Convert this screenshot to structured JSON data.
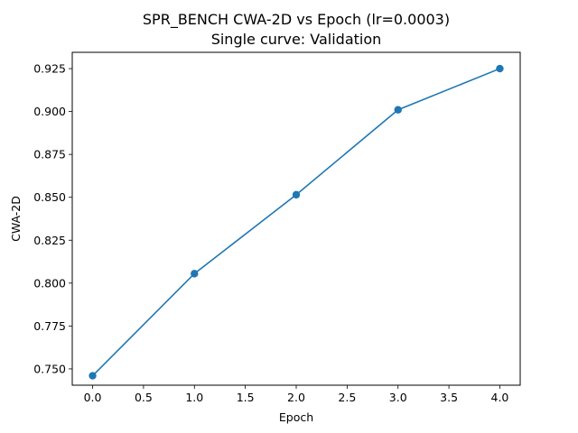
{
  "chart_data": {
    "type": "line",
    "title_line1": "SPR_BENCH CWA-2D vs Epoch (lr=0.0003)",
    "title_line2": "Single curve: Validation",
    "xlabel": "Epoch",
    "ylabel": "CWA-2D",
    "xlim": [
      -0.2,
      4.2
    ],
    "ylim": [
      0.7405,
      0.9345
    ],
    "x_ticks": [
      "0.0",
      "0.5",
      "1.0",
      "1.5",
      "2.0",
      "2.5",
      "3.0",
      "3.5",
      "4.0"
    ],
    "y_ticks": [
      "0.750",
      "0.775",
      "0.800",
      "0.825",
      "0.850",
      "0.875",
      "0.900",
      "0.925"
    ],
    "grid": false,
    "series": [
      {
        "name": "",
        "color": "#1f77b4",
        "x": [
          0,
          1,
          2,
          3,
          4
        ],
        "y": [
          0.746,
          0.8055,
          0.8515,
          0.901,
          0.925
        ]
      }
    ]
  }
}
